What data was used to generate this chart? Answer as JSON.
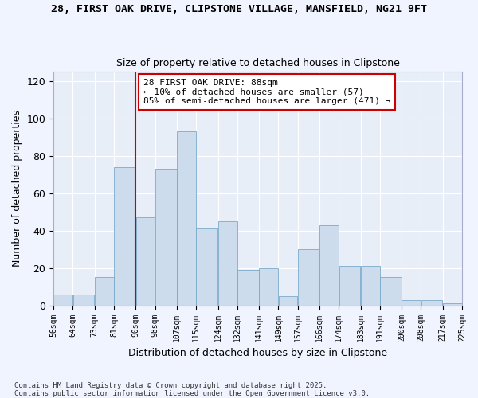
{
  "title": "28, FIRST OAK DRIVE, CLIPSTONE VILLAGE, MANSFIELD, NG21 9FT",
  "subtitle": "Size of property relative to detached houses in Clipstone",
  "xlabel": "Distribution of detached houses by size in Clipstone",
  "ylabel": "Number of detached properties",
  "bar_color": "#ccdcec",
  "bar_edge_color": "#7aaaca",
  "bg_color": "#e8eef8",
  "grid_color": "#ffffff",
  "annotation_line_color": "#cc0000",
  "annotation_box_color": "#cc0000",
  "annotation_text": "28 FIRST OAK DRIVE: 88sqm\n← 10% of detached houses are smaller (57)\n85% of semi-detached houses are larger (471) →",
  "bins": [
    56,
    64,
    73,
    81,
    90,
    98,
    107,
    115,
    124,
    132,
    141,
    149,
    157,
    166,
    174,
    183,
    191,
    200,
    208,
    217,
    225
  ],
  "bin_labels": [
    "56sqm",
    "64sqm",
    "73sqm",
    "81sqm",
    "90sqm",
    "98sqm",
    "107sqm",
    "115sqm",
    "124sqm",
    "132sqm",
    "141sqm",
    "149sqm",
    "157sqm",
    "166sqm",
    "174sqm",
    "183sqm",
    "191sqm",
    "200sqm",
    "208sqm",
    "217sqm",
    "225sqm"
  ],
  "counts": [
    6,
    6,
    15,
    74,
    47,
    73,
    93,
    41,
    45,
    19,
    20,
    5,
    30,
    43,
    21,
    21,
    15,
    3,
    3,
    1,
    1
  ],
  "ylim": [
    0,
    125
  ],
  "yticks": [
    0,
    20,
    40,
    60,
    80,
    100,
    120
  ],
  "property_line_x": 90,
  "footnote": "Contains HM Land Registry data © Crown copyright and database right 2025.\nContains public sector information licensed under the Open Government Licence v3.0."
}
